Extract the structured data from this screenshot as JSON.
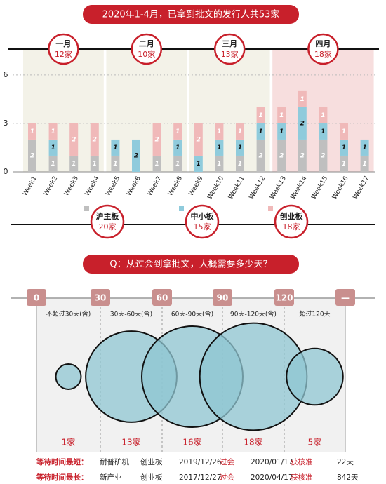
{
  "chart_data": [
    {
      "type": "bar",
      "stacked": true,
      "title": "2020年1-4月，已拿到批文的发行人共53家",
      "categories": [
        "Week1",
        "Week2",
        "Week3",
        "Week4",
        "Week5",
        "Week6",
        "Week7",
        "Week8",
        "Week9",
        "Week10",
        "Week11",
        "Week12",
        "Week13",
        "Week14",
        "Week15",
        "Week16",
        "Week17"
      ],
      "series": [
        {
          "name": "沪主板",
          "total_label": "20家",
          "color": "#bfbfbf",
          "values": [
            2,
            1,
            1,
            1,
            1,
            0,
            1,
            1,
            0,
            1,
            1,
            2,
            2,
            2,
            2,
            1,
            1
          ]
        },
        {
          "name": "中小板",
          "total_label": "15家",
          "color": "#8fcbdc",
          "values": [
            0,
            1,
            0,
            0,
            1,
            2,
            0,
            1,
            1,
            1,
            1,
            1,
            1,
            2,
            1,
            1,
            1
          ]
        },
        {
          "name": "创业板",
          "total_label": "18家",
          "color": "#f0b9b9",
          "values": [
            1,
            1,
            2,
            2,
            0,
            0,
            2,
            1,
            2,
            1,
            1,
            1,
            1,
            1,
            1,
            1,
            0
          ]
        }
      ],
      "ylim": [
        0,
        7.6
      ],
      "yticks": [
        0,
        3,
        6
      ],
      "grid": true,
      "groups": [
        {
          "label": "一月",
          "total_label": "12家"
        },
        {
          "label": "二月",
          "total_label": "10家"
        },
        {
          "label": "三月",
          "total_label": "13家"
        },
        {
          "label": "四月",
          "total_label": "18家"
        }
      ]
    },
    {
      "type": "bubble",
      "title": "Q：从过会到拿批文，大概需要多少天？",
      "interval_marks": [
        "0",
        "30",
        "60",
        "90",
        "120",
        "—"
      ],
      "categories": [
        "不超过30天(含)",
        "30天-60天(含)",
        "60天-90天(含)",
        "90天-120天(含)",
        "超过120天"
      ],
      "values": [
        1,
        13,
        16,
        18,
        5
      ],
      "value_labels": [
        "1家",
        "13家",
        "16家",
        "18家",
        "5家"
      ],
      "color": "#8fc5d1"
    }
  ],
  "table": {
    "rows": [
      [
        "等待时间最短：",
        "耐普矿机",
        "创业板",
        "2019/12/26",
        "过会",
        "2020/01/17",
        "获核准",
        "22天"
      ],
      [
        "等待时间最长：",
        "新产业",
        "创业板",
        "2017/12/27",
        "过会",
        "2020/04/17",
        "获核准",
        "842天"
      ]
    ]
  }
}
